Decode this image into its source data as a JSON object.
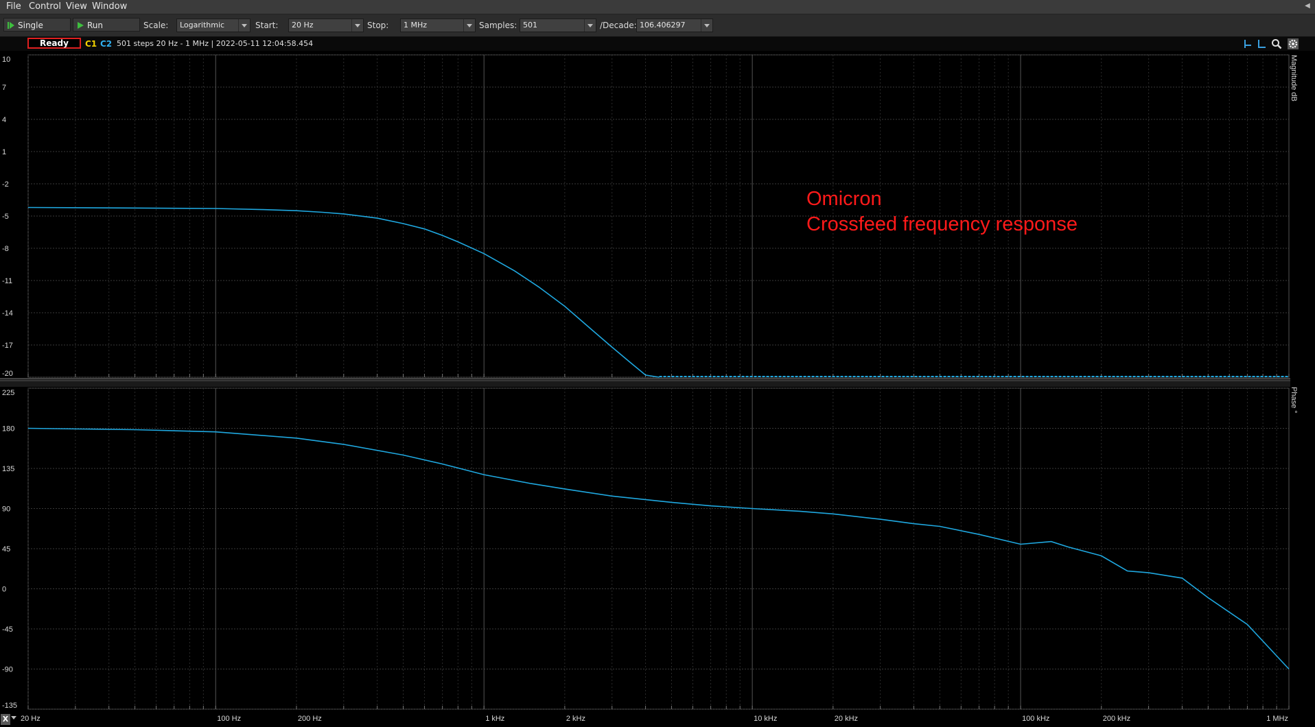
{
  "menu": {
    "file": "File",
    "control": "Control",
    "view": "View",
    "window": "Window"
  },
  "toolbar": {
    "single_label": "Single",
    "run_label": "Run",
    "scale_label": "Scale:",
    "scale_value": "Logarithmic",
    "start_label": "Start:",
    "start_value": "20 Hz",
    "stop_label": "Stop:",
    "stop_value": "1 MHz",
    "samples_label": "Samples:",
    "samples_value": "501",
    "decade_label": "/Decade:",
    "decade_value": "106.406297"
  },
  "status": {
    "state": "Ready",
    "channel1": "C1",
    "channel2": "C2",
    "info": "501 steps  20 Hz - 1 MHz | 2022-05-11 12:04:58.454"
  },
  "annotation": {
    "line1": "Omicron",
    "line2": "Crossfeed frequency response"
  },
  "colors": {
    "trace": "#1fa8e0",
    "channel1": "#f0d000",
    "channel2": "#30b0f0",
    "annotation": "#ff1a1a",
    "ready_border": "#e02020"
  },
  "chart_data": {
    "type": "line",
    "x_scale": "log",
    "xlim": [
      20,
      1000000
    ],
    "x_ticks": [
      "20 Hz",
      "100 Hz",
      "200 Hz",
      "1 kHz",
      "2 kHz",
      "10 kHz",
      "20 kHz",
      "100 kHz",
      "200 kHz",
      "1 MHz"
    ],
    "x_tick_values": [
      20,
      100,
      200,
      1000,
      2000,
      10000,
      20000,
      100000,
      200000,
      1000000
    ],
    "grid": true,
    "panels": [
      {
        "name": "magnitude",
        "ylabel": "Magnitude dB",
        "ylim": [
          -20,
          10
        ],
        "y_ticks": [
          "10",
          "7",
          "4",
          "1",
          "-2",
          "-5",
          "-8",
          "-11",
          "-14",
          "-17",
          "-20"
        ],
        "y_tick_values": [
          10,
          7,
          4,
          1,
          -2,
          -5,
          -8,
          -11,
          -14,
          -17,
          -20
        ],
        "x": [
          20,
          50,
          100,
          150,
          200,
          250,
          300,
          400,
          500,
          600,
          700,
          800,
          1000,
          1300,
          1600,
          2000,
          2500,
          3000,
          3500,
          4000,
          4500,
          5000,
          5200,
          10000,
          100000,
          1000000
        ],
        "values": [
          -4.2,
          -4.25,
          -4.3,
          -4.4,
          -4.5,
          -4.65,
          -4.8,
          -5.2,
          -5.7,
          -6.2,
          -6.8,
          -7.4,
          -8.5,
          -10.1,
          -11.6,
          -13.4,
          -15.5,
          -17.2,
          -18.6,
          -19.8,
          -20.0,
          -20.0,
          -20.0,
          -20.0,
          -20.0,
          -20.0
        ]
      },
      {
        "name": "phase",
        "ylabel": "Phase °",
        "ylim": [
          -135,
          225
        ],
        "y_ticks": [
          "225",
          "180",
          "135",
          "90",
          "45",
          "0",
          "-45",
          "-90",
          "-135"
        ],
        "y_tick_values": [
          225,
          180,
          135,
          90,
          45,
          0,
          -45,
          -90,
          -135
        ],
        "x": [
          20,
          50,
          100,
          200,
          300,
          500,
          700,
          1000,
          1500,
          2000,
          3000,
          5000,
          7000,
          10000,
          15000,
          20000,
          30000,
          40000,
          50000,
          70000,
          100000,
          130000,
          150000,
          200000,
          250000,
          300000,
          400000,
          500000,
          700000,
          1000000
        ],
        "values": [
          180,
          178.5,
          176,
          169,
          162,
          150,
          140,
          128,
          118,
          112,
          104,
          97,
          93,
          90,
          87,
          84,
          78,
          73,
          70,
          61,
          50,
          53,
          47,
          37,
          20,
          18,
          12,
          -10,
          -40,
          -90
        ]
      }
    ]
  }
}
